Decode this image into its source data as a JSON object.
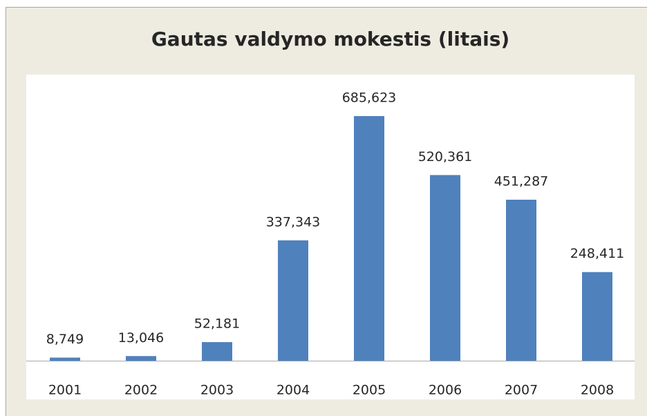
{
  "chart_data": {
    "type": "bar",
    "title": "Gautas valdymo mokestis (litais)",
    "categories": [
      "2001",
      "2002",
      "2003",
      "2004",
      "2005",
      "2006",
      "2007",
      "2008"
    ],
    "values": [
      8749,
      13046,
      52181,
      337343,
      685623,
      520361,
      451287,
      248411
    ],
    "value_labels": [
      "8,749",
      "13,046",
      "52,181",
      "337,343",
      "685,623",
      "520,361",
      "451,287",
      "248,411"
    ],
    "color": "#4f81bd"
  }
}
